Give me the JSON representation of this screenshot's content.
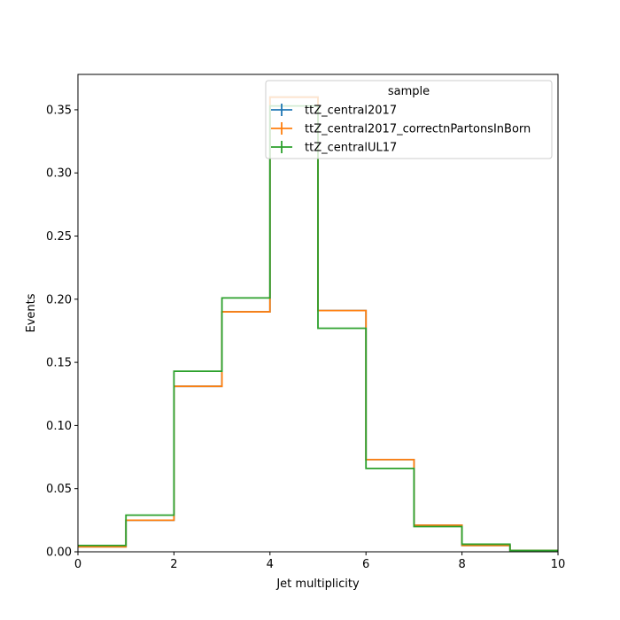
{
  "chart_data": {
    "type": "step",
    "xlabel": "Jet multiplicity",
    "ylabel": "Events",
    "xlim": [
      0,
      10
    ],
    "ylim": [
      0,
      0.378
    ],
    "x_ticks": [
      0,
      2,
      4,
      6,
      8,
      10
    ],
    "y_ticks": [
      0.0,
      0.05,
      0.1,
      0.15,
      0.2,
      0.25,
      0.3,
      0.35
    ],
    "x_tick_labels": [
      "0",
      "2",
      "4",
      "6",
      "8",
      "10"
    ],
    "y_tick_labels": [
      "0.00",
      "0.05",
      "0.10",
      "0.15",
      "0.20",
      "0.25",
      "0.30",
      "0.35"
    ],
    "bin_edges": [
      0,
      1,
      2,
      3,
      4,
      5,
      6,
      7,
      8,
      9,
      10
    ],
    "legend": {
      "title": "sample",
      "location": "upper right"
    },
    "series": [
      {
        "name": "ttZ_central2017",
        "color": "#1f77b4",
        "values": [
          0.004,
          0.025,
          0.131,
          0.19,
          0.36,
          0.191,
          0.073,
          0.021,
          0.005,
          0.001
        ]
      },
      {
        "name": "ttZ_central2017_correctnPartonsInBorn",
        "color": "#ff7f0e",
        "values": [
          0.004,
          0.025,
          0.131,
          0.19,
          0.36,
          0.191,
          0.073,
          0.021,
          0.005,
          0.001
        ]
      },
      {
        "name": "ttZ_centralUL17",
        "color": "#2ca02c",
        "values": [
          0.005,
          0.029,
          0.143,
          0.201,
          0.353,
          0.177,
          0.066,
          0.02,
          0.006,
          0.001
        ]
      }
    ]
  }
}
